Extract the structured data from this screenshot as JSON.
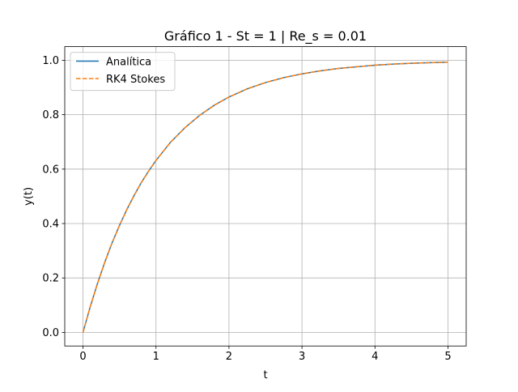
{
  "chart_data": {
    "type": "line",
    "title": "Gráfico 1 - St = 1 | Re_s = 0.01",
    "xlabel": "t",
    "ylabel": "y(t)",
    "xlim": [
      -0.25,
      5.25
    ],
    "ylim": [
      -0.05,
      1.05
    ],
    "xticks": [
      0,
      1,
      2,
      3,
      4,
      5
    ],
    "xtick_labels": [
      "0",
      "1",
      "2",
      "3",
      "4",
      "5"
    ],
    "yticks": [
      0.0,
      0.2,
      0.4,
      0.6,
      0.8,
      1.0
    ],
    "ytick_labels": [
      "0.0",
      "0.2",
      "0.4",
      "0.6",
      "0.8",
      "1.0"
    ],
    "grid": true,
    "legend_position": "top-left",
    "x": [
      0,
      0.1,
      0.2,
      0.3,
      0.4,
      0.5,
      0.6,
      0.7,
      0.8,
      0.9,
      1.0,
      1.2,
      1.4,
      1.6,
      1.8,
      2.0,
      2.25,
      2.5,
      2.75,
      3.0,
      3.25,
      3.5,
      3.75,
      4.0,
      4.25,
      4.5,
      4.75,
      5.0
    ],
    "series": [
      {
        "name": "Analítica",
        "color": "#1f77b4",
        "style": "solid",
        "values": [
          0.0,
          0.095,
          0.181,
          0.259,
          0.33,
          0.393,
          0.451,
          0.503,
          0.551,
          0.593,
          0.632,
          0.699,
          0.753,
          0.798,
          0.835,
          0.865,
          0.895,
          0.918,
          0.936,
          0.95,
          0.961,
          0.97,
          0.976,
          0.982,
          0.986,
          0.989,
          0.991,
          0.993
        ]
      },
      {
        "name": "RK4 Stokes",
        "color": "#ff7f0e",
        "style": "dashed",
        "values": [
          0.0,
          0.095,
          0.181,
          0.259,
          0.33,
          0.393,
          0.451,
          0.503,
          0.551,
          0.593,
          0.632,
          0.699,
          0.753,
          0.798,
          0.835,
          0.865,
          0.895,
          0.918,
          0.936,
          0.95,
          0.961,
          0.97,
          0.976,
          0.982,
          0.986,
          0.989,
          0.991,
          0.993
        ]
      }
    ]
  }
}
